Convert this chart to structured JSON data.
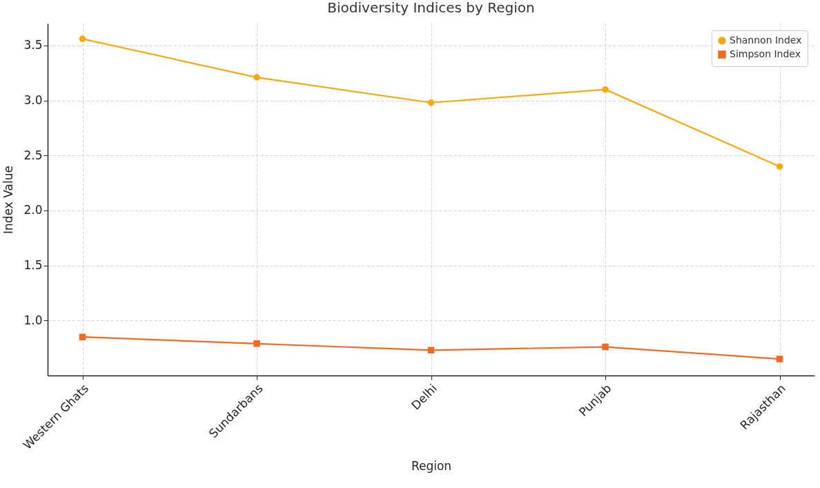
{
  "chart_data": {
    "type": "line",
    "title": "Biodiversity Indices by Region",
    "xlabel": "Region",
    "ylabel": "Index Value",
    "categories": [
      "Western Ghats",
      "Sundarbans",
      "Delhi",
      "Punjab",
      "Rajasthan"
    ],
    "series": [
      {
        "name": "Shannon Index",
        "color": "#f7a90f",
        "marker": "circle",
        "values": [
          3.56,
          3.21,
          2.98,
          3.1,
          2.4
        ]
      },
      {
        "name": "Simpson Index",
        "color": "#f26a21",
        "marker": "square",
        "values": [
          0.85,
          0.79,
          0.73,
          0.76,
          0.65
        ]
      }
    ],
    "ylim": [
      0.5,
      3.7
    ],
    "yticks": [
      {
        "value": 1,
        "label": "1.0"
      },
      1.5,
      {
        "value": 2,
        "label": "2.0"
      },
      2.5,
      {
        "value": 3,
        "label": "3.0"
      },
      3.5
    ],
    "grid": true,
    "legend": "top right"
  }
}
